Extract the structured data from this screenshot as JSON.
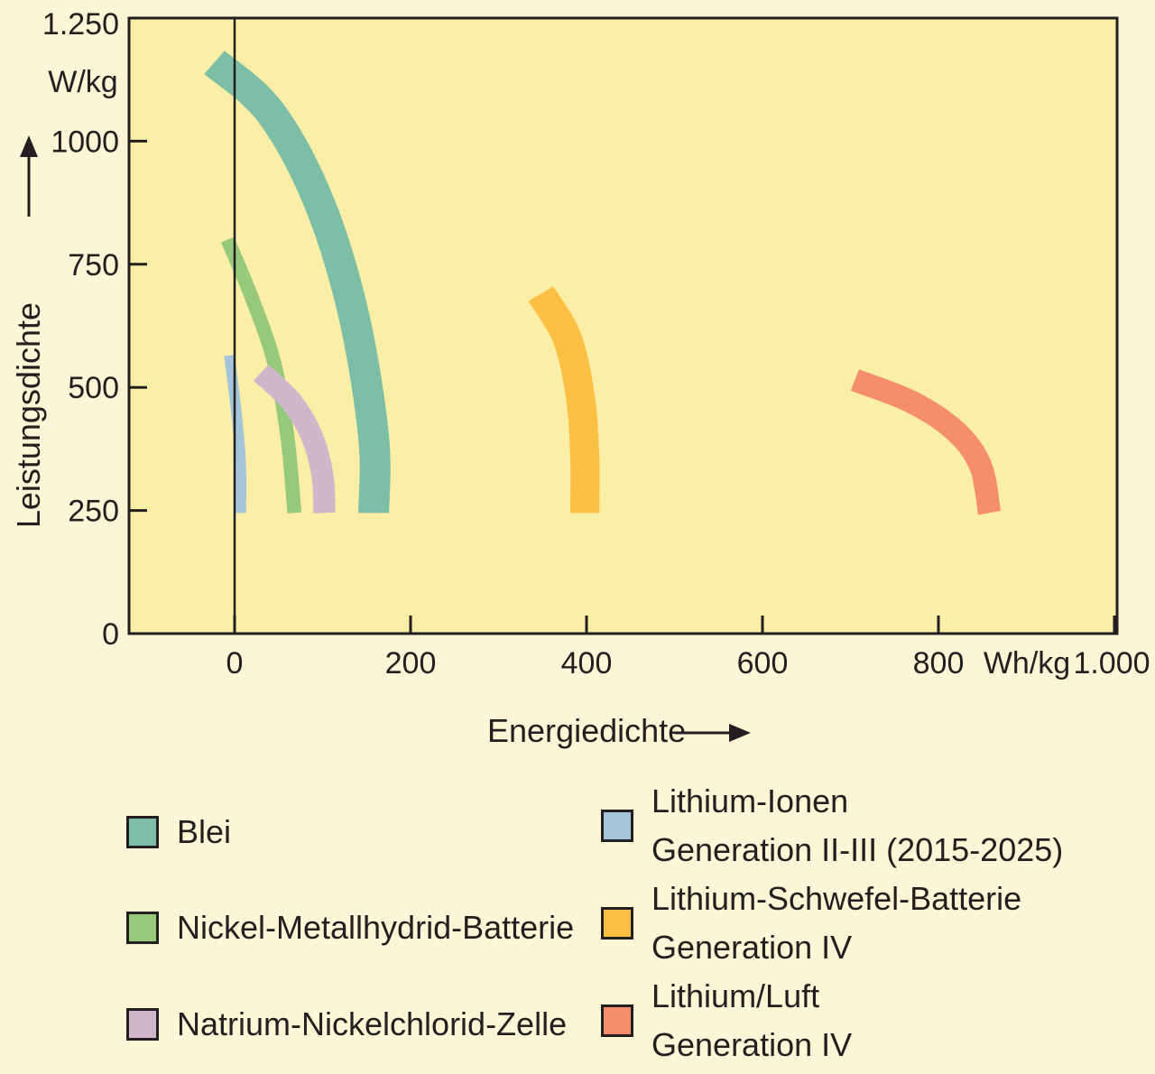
{
  "chart_data": {
    "type": "area",
    "xlabel": "Energiedichte",
    "ylabel": "Leistungsdichte",
    "x_unit": "Wh/kg",
    "y_unit": "W/kg",
    "xlim": [
      -120,
      1000
    ],
    "ylim": [
      0,
      1250
    ],
    "x_ticks": [
      {
        "value": 0,
        "label": "0"
      },
      {
        "value": 200,
        "label": "200"
      },
      {
        "value": 400,
        "label": "400"
      },
      {
        "value": 600,
        "label": "600"
      },
      {
        "value": 800,
        "label": "800"
      },
      {
        "value": 1000,
        "label": "1.000"
      }
    ],
    "y_ticks": [
      {
        "value": 0,
        "label": "0"
      },
      {
        "value": 250,
        "label": "250"
      },
      {
        "value": 500,
        "label": "500"
      },
      {
        "value": 750,
        "label": "750"
      },
      {
        "value": 1000,
        "label": "1000"
      },
      {
        "value": 1250,
        "label": "1.250"
      }
    ],
    "grid": false,
    "plot_background": "#fbeea6",
    "page_background": "#fcf6d6",
    "series": [
      {
        "name": "Blei",
        "color": "#7dbfa6",
        "band_width": 35,
        "points": [
          [
            -23,
            1160
          ],
          [
            40,
            1060
          ],
          [
            95,
            880
          ],
          [
            135,
            650
          ],
          [
            158,
            400
          ],
          [
            158,
            245
          ]
        ]
      },
      {
        "name": "Nickel-Metallhydrid-Batterie",
        "color": "#96c97b",
        "band_width": 16,
        "points": [
          [
            -8,
            800
          ],
          [
            20,
            680
          ],
          [
            45,
            550
          ],
          [
            60,
            400
          ],
          [
            68,
            245
          ]
        ]
      },
      {
        "name": "Natrium-Nickelchlorid-Zelle",
        "color": "#d1b7cc",
        "band_width": 25,
        "points": [
          [
            30,
            530
          ],
          [
            65,
            470
          ],
          [
            88,
            400
          ],
          [
            100,
            320
          ],
          [
            102,
            245
          ]
        ]
      },
      {
        "name": "Lithium-Ionen Generation II-III (2015-2025)",
        "color": "#a3c4d9",
        "band_width": 12,
        "points": [
          [
            -6,
            565
          ],
          [
            2,
            450
          ],
          [
            7,
            340
          ],
          [
            7,
            245
          ]
        ]
      },
      {
        "name": "Lithium-Schwefel-Batterie Generation IV",
        "color": "#fbc044",
        "band_width": 33,
        "points": [
          [
            348,
            690
          ],
          [
            378,
            600
          ],
          [
            393,
            480
          ],
          [
            398,
            360
          ],
          [
            398,
            245
          ]
        ]
      },
      {
        "name": "Lithium/Luft Generation IV",
        "color": "#f48e6c",
        "band_width": 26,
        "points": [
          [
            705,
            515
          ],
          [
            770,
            470
          ],
          [
            820,
            410
          ],
          [
            848,
            340
          ],
          [
            858,
            245
          ]
        ]
      }
    ]
  },
  "legend": {
    "items": [
      {
        "lines": [
          "Blei"
        ],
        "color": "#7dbfa6"
      },
      {
        "lines": [
          "Nickel-Metallhydrid-Batterie"
        ],
        "color": "#96c97b"
      },
      {
        "lines": [
          "Natrium-Nickelchlorid-Zelle"
        ],
        "color": "#d1b7cc"
      },
      {
        "lines": [
          "Lithium-Ionen",
          "Generation II-III (2015-2025)"
        ],
        "color": "#a3c4d9"
      },
      {
        "lines": [
          "Lithium-Schwefel-Batterie",
          "Generation IV"
        ],
        "color": "#fbc044"
      },
      {
        "lines": [
          "Lithium/Luft",
          "Generation IV"
        ],
        "color": "#f48e6c"
      }
    ]
  }
}
